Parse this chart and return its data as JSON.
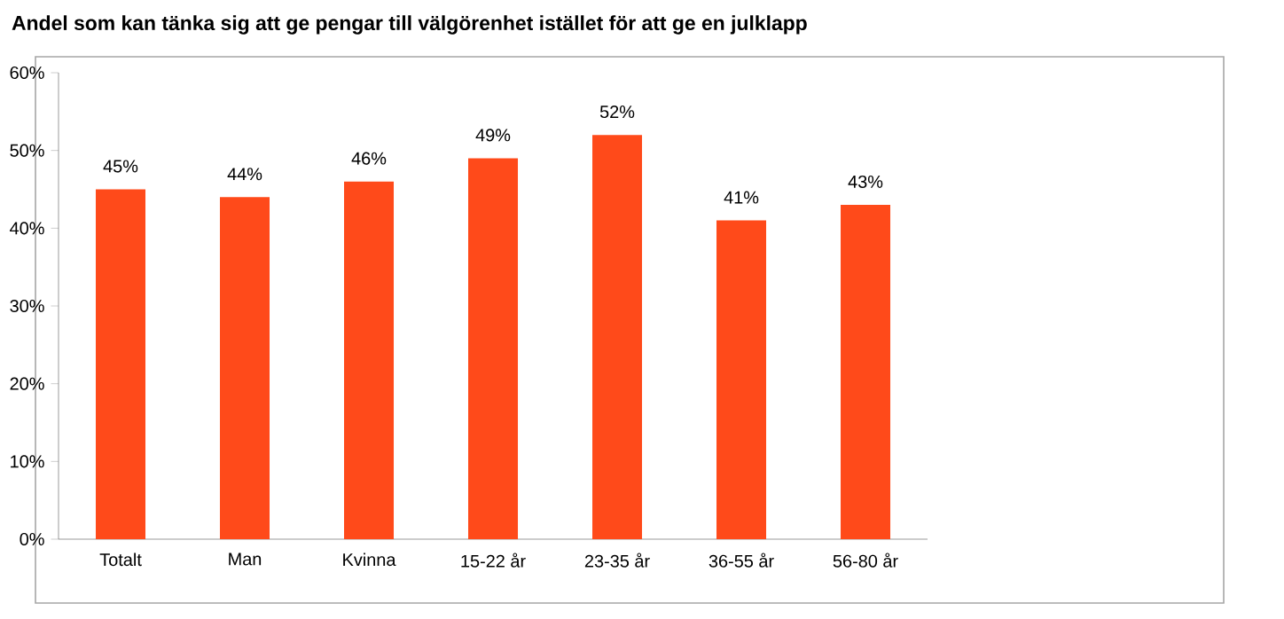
{
  "chart_data": {
    "type": "bar",
    "title": "Andel som kan tänka sig att ge pengar till välgörenhet istället för att ge en julklapp",
    "categories": [
      "Totalt",
      "Man",
      "Kvinna",
      "15-22 år",
      "23-35 år",
      "36-55 år",
      "56-80 år"
    ],
    "values": [
      45,
      44,
      46,
      49,
      52,
      41,
      43
    ],
    "value_labels": [
      "45%",
      "44%",
      "46%",
      "49%",
      "52%",
      "41%",
      "43%"
    ],
    "color": "#ff4a1a",
    "ylim": [
      0,
      60
    ],
    "yticks": [
      {
        "value": 0,
        "label": "0%"
      },
      {
        "value": 10,
        "label": "10%"
      },
      {
        "value": 20,
        "label": "20%"
      },
      {
        "value": 30,
        "label": "30%"
      },
      {
        "value": 40,
        "label": "40%"
      },
      {
        "value": 50,
        "label": "50%"
      },
      {
        "value": 60,
        "label": "60%"
      }
    ]
  }
}
